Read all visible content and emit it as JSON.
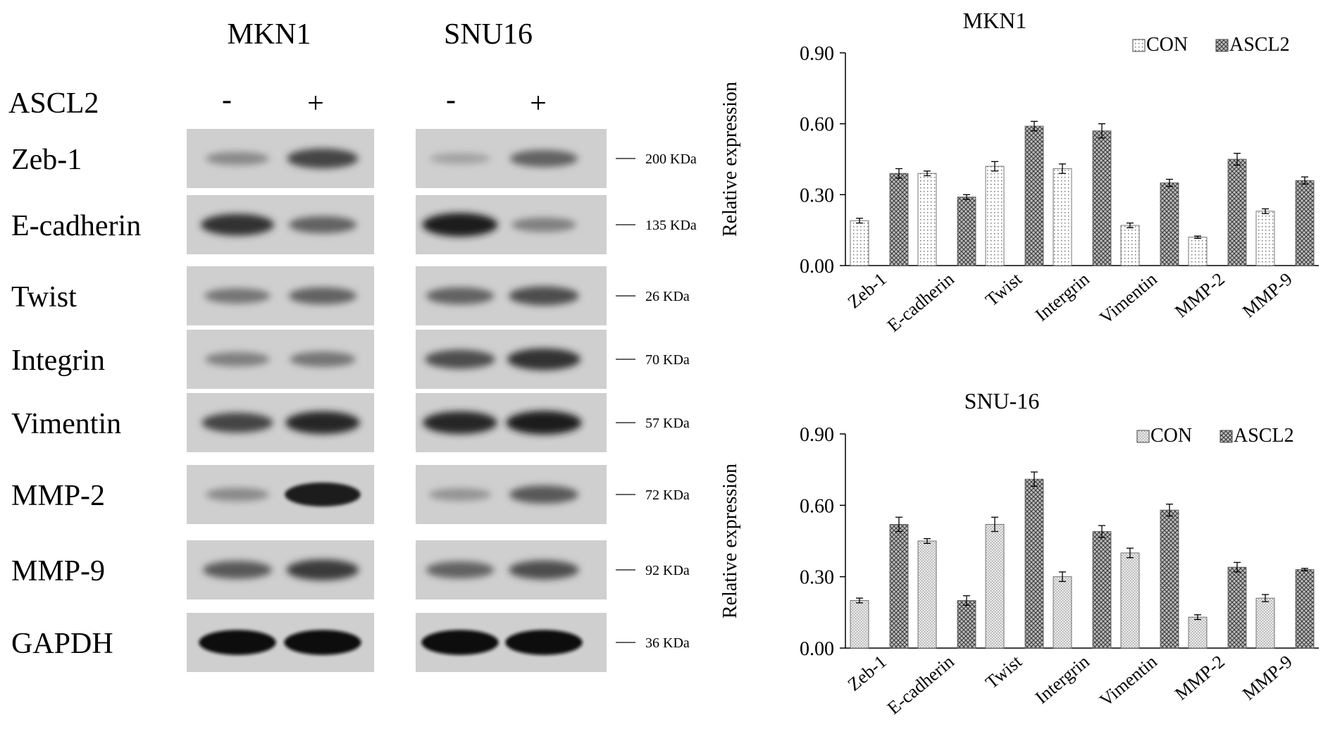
{
  "western_blot": {
    "cell_lines": [
      "MKN1",
      "SNU16"
    ],
    "treatment_label": "ASCL2",
    "lane_signs": [
      "-",
      "+",
      "-",
      "+"
    ],
    "proteins": [
      {
        "name": "Zeb-1",
        "size": "200 KDa"
      },
      {
        "name": "E-cadherin",
        "size": "135 KDa"
      },
      {
        "name": "Twist",
        "size": "26 KDa"
      },
      {
        "name": "Integrin",
        "size": "70 KDa"
      },
      {
        "name": "Vimentin",
        "size": "57 KDa"
      },
      {
        "name": "MMP-2",
        "size": "72 KDa"
      },
      {
        "name": "MMP-9",
        "size": "92 KDa"
      },
      {
        "name": "GAPDH",
        "size": "36 KDa"
      }
    ],
    "band_intensity": [
      [
        0.35,
        0.7,
        0.22,
        0.55
      ],
      [
        0.8,
        0.55,
        0.9,
        0.4
      ],
      [
        0.45,
        0.55,
        0.55,
        0.65
      ],
      [
        0.4,
        0.45,
        0.65,
        0.8
      ],
      [
        0.7,
        0.85,
        0.85,
        0.9
      ],
      [
        0.35,
        0.92,
        0.3,
        0.6
      ],
      [
        0.6,
        0.75,
        0.55,
        0.65
      ],
      [
        0.98,
        0.98,
        0.98,
        0.98
      ]
    ]
  },
  "chart_data": [
    {
      "type": "bar",
      "title": "MKN1",
      "ylabel": "Relative expression",
      "xlabel": "",
      "categories": [
        "Zeb-1",
        "E-cadherin",
        "Twist",
        "Intergrin",
        "Vimentin",
        "MMP-2",
        "MMP-9"
      ],
      "series": [
        {
          "name": "CON",
          "values": [
            0.19,
            0.39,
            0.42,
            0.41,
            0.17,
            0.12,
            0.23
          ],
          "errors": [
            0.01,
            0.01,
            0.02,
            0.02,
            0.01,
            0.005,
            0.01
          ],
          "pattern": "dots"
        },
        {
          "name": "ASCL2",
          "values": [
            0.39,
            0.29,
            0.59,
            0.57,
            0.35,
            0.45,
            0.36
          ],
          "errors": [
            0.02,
            0.01,
            0.02,
            0.03,
            0.015,
            0.025,
            0.015
          ],
          "pattern": "crosshatch"
        }
      ],
      "ylim": [
        0,
        0.9
      ],
      "yticks": [
        "0.00",
        "0.30",
        "0.60",
        "0.90"
      ],
      "legend": "top-right"
    },
    {
      "type": "bar",
      "title": "SNU-16",
      "ylabel": "Relative expression",
      "xlabel": "",
      "categories": [
        "Zeb-1",
        "E-cadherin",
        "Twist",
        "Intergrin",
        "Vimentin",
        "MMP-2",
        "MMP-9"
      ],
      "series": [
        {
          "name": "CON",
          "values": [
            0.2,
            0.45,
            0.52,
            0.3,
            0.4,
            0.13,
            0.21
          ],
          "errors": [
            0.01,
            0.01,
            0.03,
            0.02,
            0.02,
            0.01,
            0.015
          ],
          "pattern": "fine"
        },
        {
          "name": "ASCL2",
          "values": [
            0.52,
            0.2,
            0.71,
            0.49,
            0.58,
            0.34,
            0.33
          ],
          "errors": [
            0.03,
            0.02,
            0.03,
            0.025,
            0.025,
            0.02,
            0.005
          ],
          "pattern": "crosshatch"
        }
      ],
      "ylim": [
        0,
        0.9
      ],
      "yticks": [
        "0.00",
        "0.30",
        "0.60",
        "0.90"
      ],
      "legend": "top-right"
    }
  ]
}
